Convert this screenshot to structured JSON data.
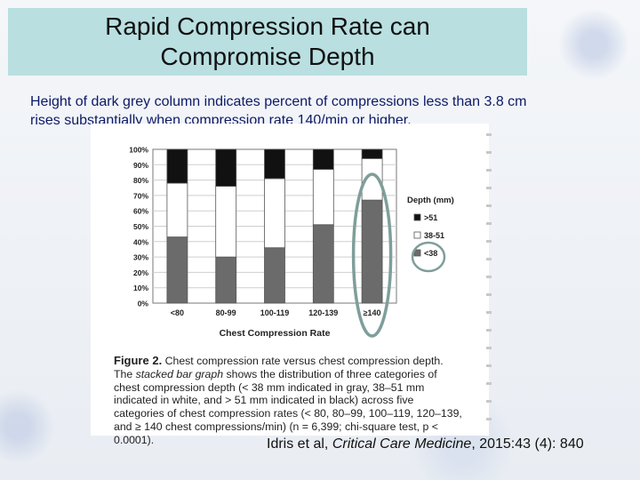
{
  "slide": {
    "title_line1": "Rapid Compression Rate can",
    "title_line2": "Compromise Depth",
    "subtitle_line1": "Height of dark grey column indicates percent of compressions less than 3.8 cm",
    "subtitle_line2": "rises substantially when compression rate 140/min or higher.",
    "citation_prefix": "Idris et al, ",
    "citation_journal": "Critical Care Medicine",
    "citation_suffix": ", 2015:43 (4): 840"
  },
  "caption": {
    "fig_label": "Figure 2.",
    "part1": " Chest compression rate versus chest compression depth. The ",
    "italic": "stacked bar graph",
    "part2": " shows the distribution of three categories of chest compression depth (< 38 mm indicated in gray, 38–51 mm indicated in white, and > 51 mm indicated in black) across five categories of chest compression rates (< 80, 80–99, 100–119, 120–139, and ≥ 140 chest compressions/min) (n = 6,399; chi-square test, p < 0.0001)."
  },
  "colors": {
    "lt38": "#6b6b6b",
    "mid": "#ffffff",
    "gt51": "#111111",
    "highlight_ring": "#7f9e9b"
  },
  "chart_data": {
    "type": "bar",
    "stacked": true,
    "title": "",
    "xlabel": "Chest Compression Rate",
    "ylabel": "",
    "categories": [
      "<80",
      "80-99",
      "100-119",
      "120-139",
      "≥140"
    ],
    "ylim": [
      0,
      100
    ],
    "yticks": [
      "0%",
      "10%",
      "20%",
      "30%",
      "40%",
      "50%",
      "60%",
      "70%",
      "80%",
      "90%",
      "100%"
    ],
    "legend_title": "Depth (mm)",
    "legend_position": "right",
    "series": [
      {
        "name": "<38",
        "color": "#6b6b6b",
        "values": [
          43,
          30,
          36,
          51,
          67
        ]
      },
      {
        "name": "38-51",
        "color": "#ffffff",
        "values": [
          35,
          46,
          45,
          36,
          27
        ]
      },
      {
        "name": ">51",
        "color": "#111111",
        "values": [
          22,
          24,
          19,
          13,
          6
        ]
      }
    ],
    "legend_order": [
      ">51",
      "38-51",
      "<38"
    ],
    "highlighted_category": "≥140"
  }
}
